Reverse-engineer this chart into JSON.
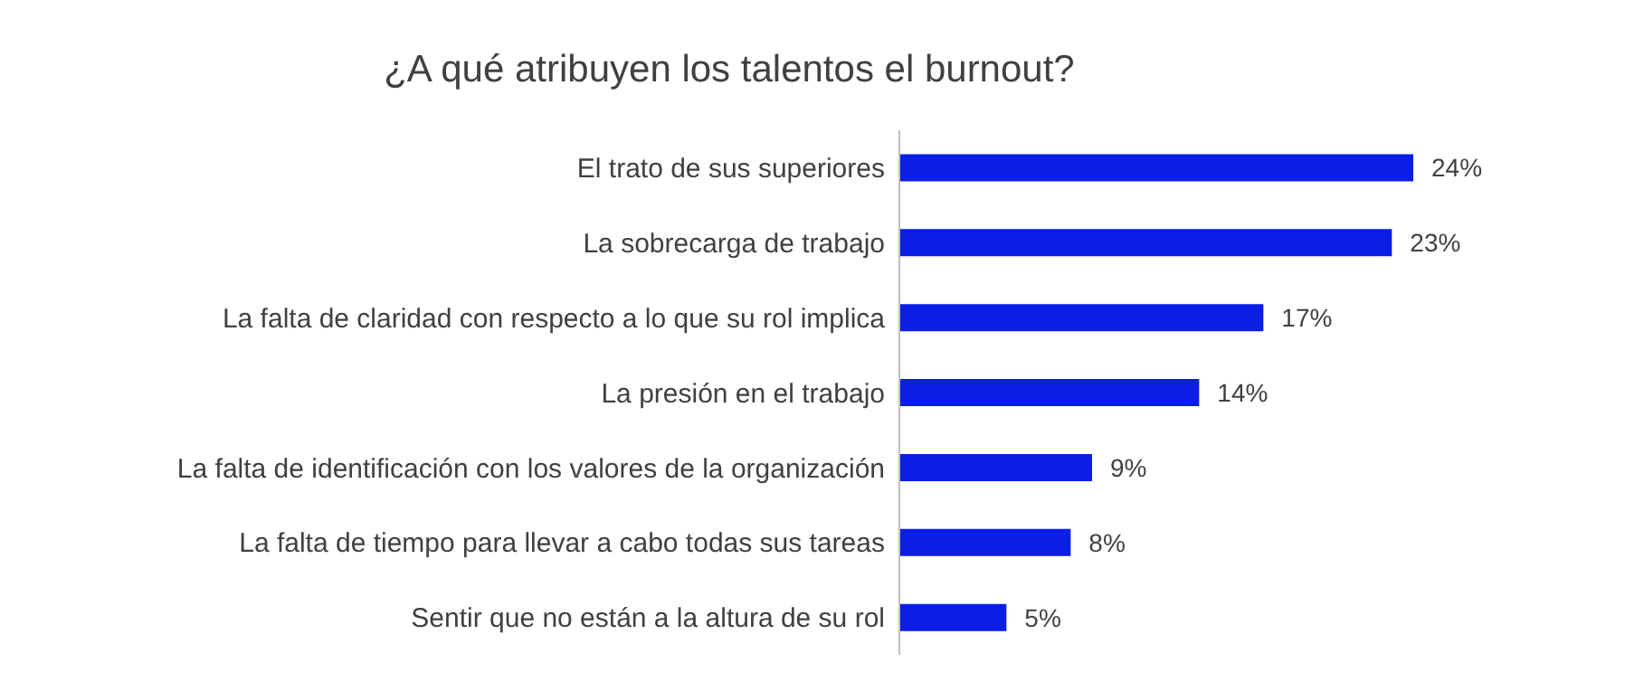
{
  "chart_data": {
    "type": "bar",
    "orientation": "horizontal",
    "title": "¿A qué atribuyen los talentos el burnout?",
    "categories": [
      "El trato de sus superiores",
      "La sobrecarga de trabajo",
      "La falta de claridad con respecto a lo que su rol implica",
      "La presión en el trabajo",
      "La falta de identificación con los valores de la organización",
      "La falta de tiempo para llevar a cabo todas sus tareas",
      "Sentir que no están a la altura de su rol"
    ],
    "values": [
      24,
      23,
      17,
      14,
      9,
      8,
      5
    ],
    "value_labels": [
      "24%",
      "23%",
      "17%",
      "14%",
      "9%",
      "8%",
      "5%"
    ],
    "color": "#0a1ee6"
  }
}
